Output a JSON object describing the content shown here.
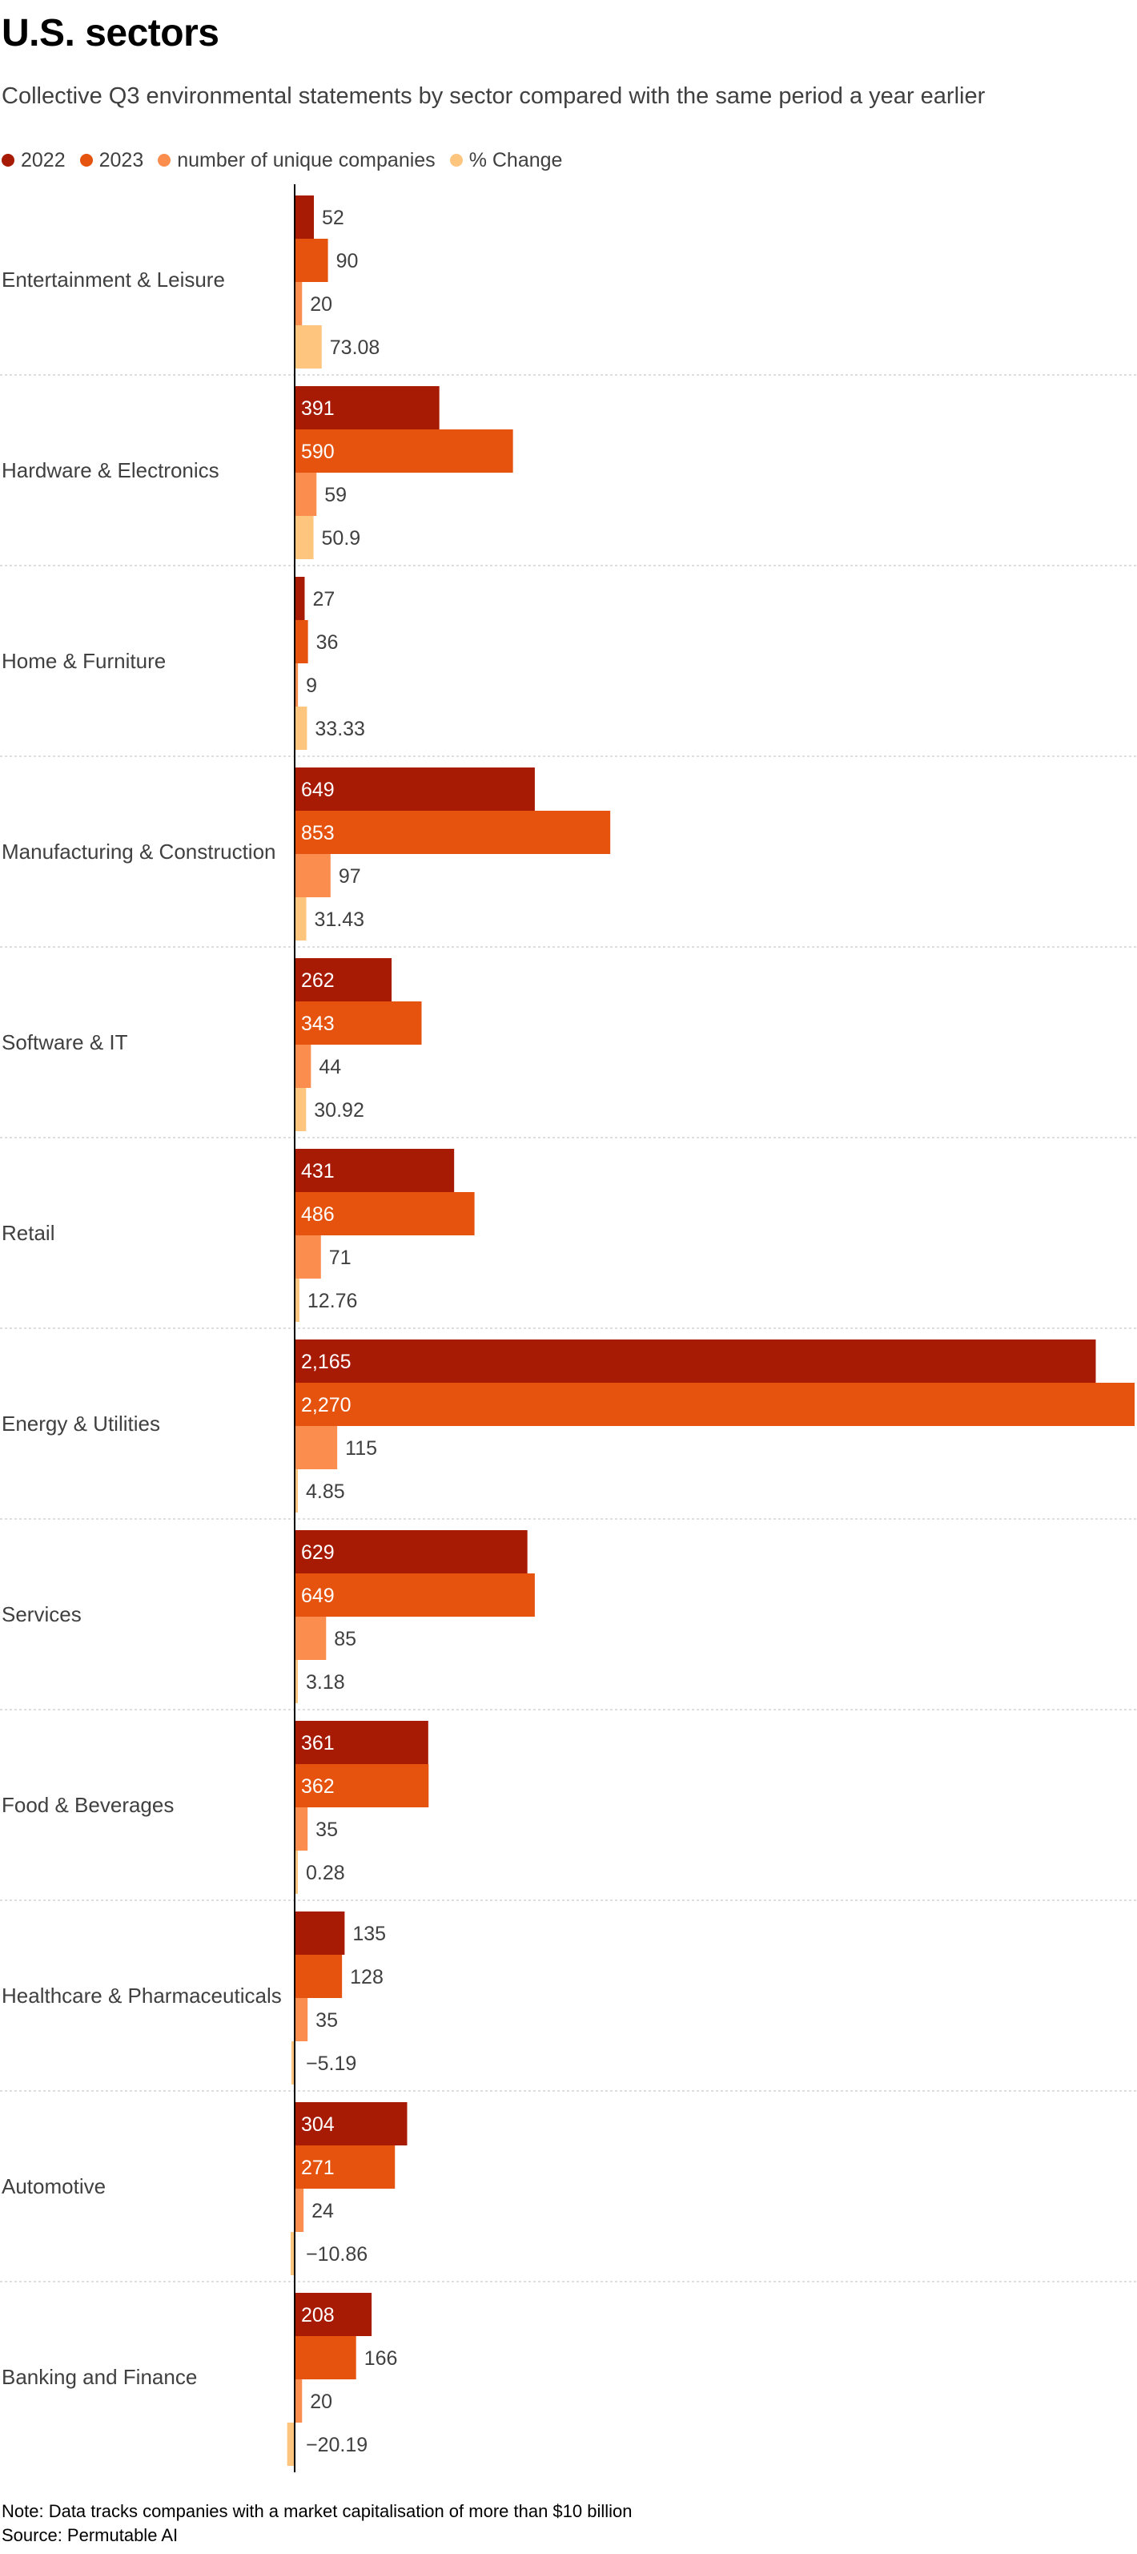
{
  "title": "U.S. sectors",
  "subtitle": "Collective Q3 environmental statements by sector compared with the same period a year earlier",
  "legend": [
    {
      "label": "2022",
      "color": "#a71a04"
    },
    {
      "label": "2023",
      "color": "#e5530f"
    },
    {
      "label": "number of unique companies",
      "color": "#fb8d4e"
    },
    {
      "label": "% Change",
      "color": "#fec57f"
    }
  ],
  "note": "Note: Data tracks companies with a market capitalisation of more than $10 billion",
  "source": "Source: Permutable AI",
  "chart_data": {
    "type": "bar",
    "orientation": "horizontal",
    "title": "U.S. sectors",
    "subtitle": "Collective Q3 environmental statements by sector compared with the same period a year earlier",
    "xlabel": "",
    "ylabel": "",
    "xlim": [
      -20.19,
      2270
    ],
    "grid": false,
    "legend_position": "top-left",
    "categories": [
      "Entertainment & Leisure",
      "Hardware & Electronics",
      "Home & Furniture",
      "Manufacturing & Construction",
      "Software & IT",
      "Retail",
      "Energy & Utilities",
      "Services",
      "Food & Beverages",
      "Healthcare & Pharmaceuticals",
      "Automotive",
      "Banking and Finance"
    ],
    "series": [
      {
        "name": "2022",
        "color": "#a71a04",
        "values": [
          52,
          391,
          27,
          649,
          262,
          431,
          2165,
          629,
          361,
          135,
          304,
          208
        ],
        "labels": [
          "52",
          "391",
          "27",
          "649",
          "262",
          "431",
          "2,165",
          "629",
          "361",
          "135",
          "304",
          "208"
        ]
      },
      {
        "name": "2023",
        "color": "#e5530f",
        "values": [
          90,
          590,
          36,
          853,
          343,
          486,
          2270,
          649,
          362,
          128,
          271,
          166
        ],
        "labels": [
          "90",
          "590",
          "36",
          "853",
          "343",
          "486",
          "2,270",
          "649",
          "362",
          "128",
          "271",
          "166"
        ]
      },
      {
        "name": "number of unique companies",
        "color": "#fb8d4e",
        "values": [
          20,
          59,
          9,
          97,
          44,
          71,
          115,
          85,
          35,
          35,
          24,
          20
        ],
        "labels": [
          "20",
          "59",
          "9",
          "97",
          "44",
          "71",
          "115",
          "85",
          "35",
          "35",
          "24",
          "20"
        ]
      },
      {
        "name": "% Change",
        "color": "#fec57f",
        "values": [
          73.08,
          50.9,
          33.33,
          31.43,
          30.92,
          12.76,
          4.85,
          3.18,
          0.28,
          -5.19,
          -10.86,
          -20.19
        ],
        "labels": [
          "73.08",
          "50.9",
          "33.33",
          "31.43",
          "30.92",
          "12.76",
          "4.85",
          "3.18",
          "0.28",
          "−5.19",
          "−10.86",
          "−20.19"
        ]
      }
    ]
  }
}
